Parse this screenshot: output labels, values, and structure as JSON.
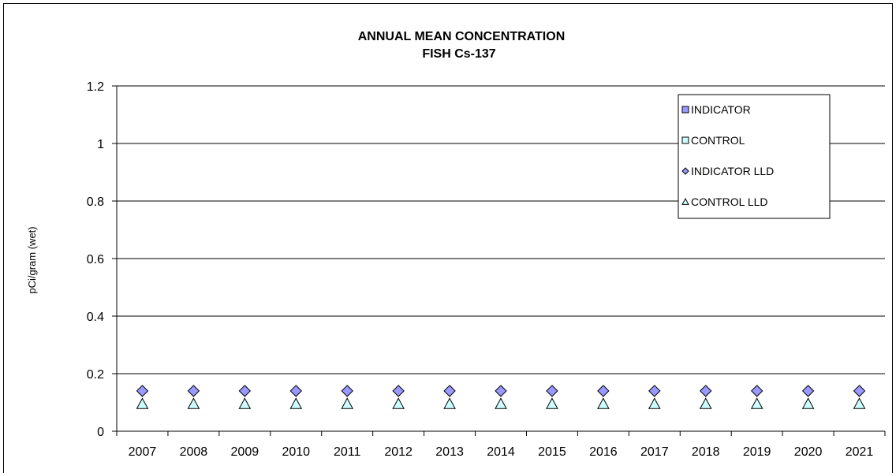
{
  "chart_data": {
    "type": "scatter",
    "title": "ANNUAL  MEAN CONCENTRATION",
    "subtitle": "FISH Cs-137",
    "xlabel": "",
    "ylabel": "pCi/gram (wet)",
    "categories": [
      "2007",
      "2008",
      "2009",
      "2010",
      "2011",
      "2012",
      "2013",
      "2014",
      "2015",
      "2016",
      "2017",
      "2018",
      "2019",
      "2020",
      "2021"
    ],
    "ylim": [
      0,
      1.2
    ],
    "yticks": [
      "0",
      "0.2",
      "0.4",
      "0.6",
      "0.8",
      "1",
      "1.2"
    ],
    "grid": true,
    "legend_position": "top-right",
    "series": [
      {
        "name": "INDICATOR",
        "marker": "square",
        "color": "#9999ff",
        "values": []
      },
      {
        "name": "CONTROL",
        "marker": "square",
        "color": "#ccffff",
        "values": []
      },
      {
        "name": "INDICATOR LLD",
        "marker": "diamond",
        "color": "#9999ff",
        "values": [
          0.14,
          0.14,
          0.14,
          0.14,
          0.14,
          0.14,
          0.14,
          0.14,
          0.14,
          0.14,
          0.14,
          0.14,
          0.14,
          0.14,
          0.14
        ]
      },
      {
        "name": "CONTROL LLD",
        "marker": "triangle",
        "color": "#ccffff",
        "values": [
          0.095,
          0.095,
          0.095,
          0.095,
          0.095,
          0.095,
          0.095,
          0.095,
          0.095,
          0.095,
          0.095,
          0.095,
          0.095,
          0.095,
          0.095
        ]
      }
    ]
  }
}
